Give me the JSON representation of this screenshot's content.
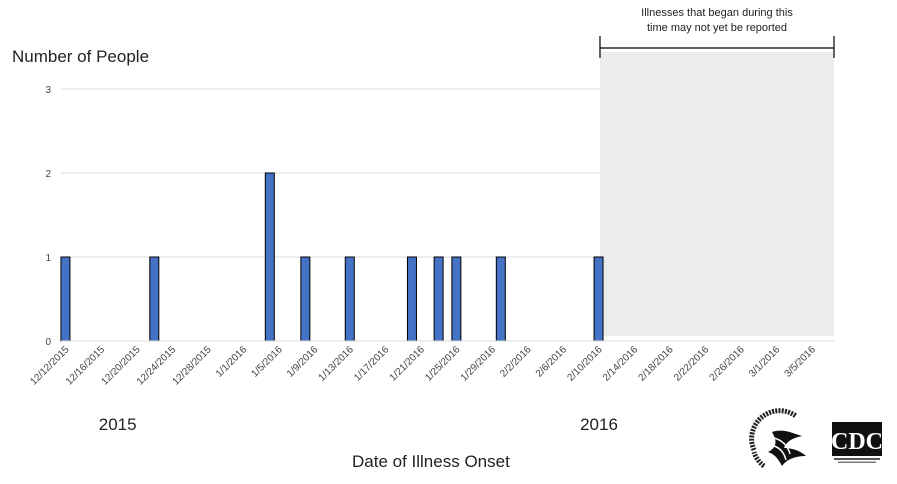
{
  "chart_data": {
    "type": "bar",
    "title": "",
    "ylabel": "Number of People",
    "xlabel": "Date of Illness Onset",
    "ylim": [
      0,
      3
    ],
    "yticks": [
      0,
      1,
      2,
      3
    ],
    "grid": true,
    "x_start": "12/12/2015",
    "x_end": "3/7/2016",
    "xtick_labels": [
      "12/12/2015",
      "12/16/2015",
      "12/20/2015",
      "12/24/2015",
      "12/28/2015",
      "1/1/2016",
      "1/5/2016",
      "1/9/2016",
      "1/13/2016",
      "1/17/2016",
      "1/21/2016",
      "1/25/2016",
      "1/29/2016",
      "2/2/2016",
      "2/6/2016",
      "2/10/2016",
      "2/14/2016",
      "2/18/2016",
      "2/22/2016",
      "2/26/2016",
      "3/1/2016",
      "3/5/2016"
    ],
    "year_labels": [
      {
        "text": "2015",
        "at": "12/14/2015"
      },
      {
        "text": "2016",
        "at": "2/10/2016"
      }
    ],
    "bars": [
      {
        "date": "12/12/2015",
        "value": 1
      },
      {
        "date": "12/22/2015",
        "value": 1
      },
      {
        "date": "1/4/2016",
        "value": 2
      },
      {
        "date": "1/8/2016",
        "value": 1
      },
      {
        "date": "1/13/2016",
        "value": 1
      },
      {
        "date": "1/20/2016",
        "value": 1
      },
      {
        "date": "1/23/2016",
        "value": 1
      },
      {
        "date": "1/25/2016",
        "value": 1
      },
      {
        "date": "1/30/2016",
        "value": 1
      },
      {
        "date": "2/10/2016",
        "value": 1
      }
    ],
    "shaded_region": {
      "start": "2/11/2016",
      "end": "3/7/2016"
    },
    "annotation": [
      "Illnesses that began during this",
      "time may not yet be reported"
    ],
    "colors": {
      "bar": "#4472c4",
      "bar_outline": "#000000",
      "shade": "#ededed",
      "grid": "#d9d9d9"
    }
  },
  "logos": {
    "hhs": "hhs-eagle-logo",
    "cdc": "CDC"
  }
}
